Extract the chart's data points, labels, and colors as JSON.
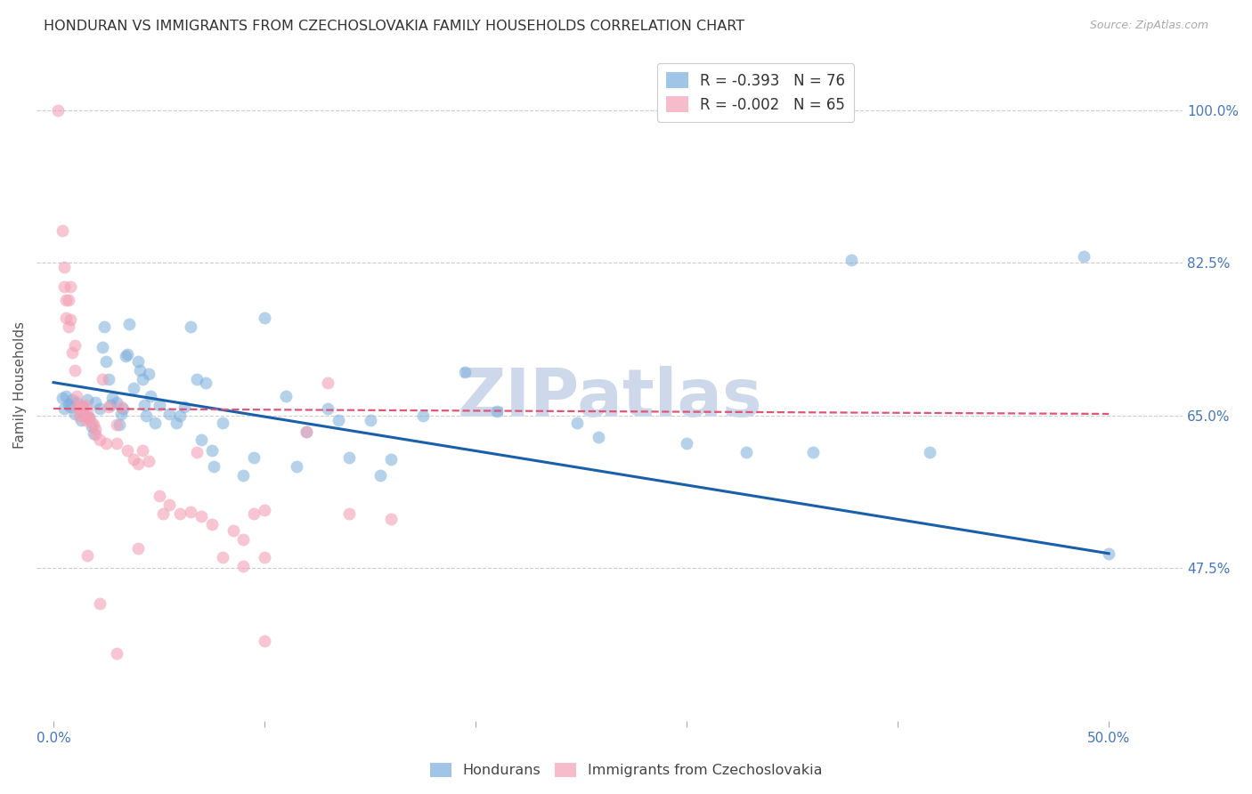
{
  "title": "HONDURAN VS IMMIGRANTS FROM CZECHOSLOVAKIA FAMILY HOUSEHOLDS CORRELATION CHART",
  "source": "Source: ZipAtlas.com",
  "ylabel": "Family Households",
  "watermark": "ZIPatlas",
  "x_ticks": [
    0.0,
    0.1,
    0.2,
    0.3,
    0.4,
    0.5
  ],
  "x_tick_labels": [
    "0.0%",
    "",
    "",
    "",
    "",
    "50.0%"
  ],
  "y_tick_labels": [
    "100.0%",
    "82.5%",
    "65.0%",
    "47.5%"
  ],
  "y_ticks": [
    1.0,
    0.825,
    0.65,
    0.475
  ],
  "xlim": [
    -0.008,
    0.535
  ],
  "ylim": [
    0.3,
    1.07
  ],
  "legend_series1": "R = -0.393   N = 76",
  "legend_series2": "R = -0.002   N = 65",
  "blue_color": "#7aaddc",
  "pink_color": "#f4a0b5",
  "blue_line_color": "#1a5faa",
  "pink_line_color": "#e05575",
  "blue_scatter": [
    [
      0.004,
      0.67
    ],
    [
      0.005,
      0.658
    ],
    [
      0.006,
      0.672
    ],
    [
      0.007,
      0.663
    ],
    [
      0.008,
      0.66
    ],
    [
      0.009,
      0.668
    ],
    [
      0.01,
      0.652
    ],
    [
      0.011,
      0.665
    ],
    [
      0.012,
      0.658
    ],
    [
      0.013,
      0.645
    ],
    [
      0.014,
      0.66
    ],
    [
      0.015,
      0.65
    ],
    [
      0.016,
      0.668
    ],
    [
      0.017,
      0.648
    ],
    [
      0.018,
      0.638
    ],
    [
      0.019,
      0.63
    ],
    [
      0.02,
      0.665
    ],
    [
      0.022,
      0.658
    ],
    [
      0.023,
      0.728
    ],
    [
      0.024,
      0.752
    ],
    [
      0.025,
      0.712
    ],
    [
      0.026,
      0.692
    ],
    [
      0.027,
      0.662
    ],
    [
      0.028,
      0.67
    ],
    [
      0.03,
      0.665
    ],
    [
      0.031,
      0.64
    ],
    [
      0.032,
      0.652
    ],
    [
      0.033,
      0.658
    ],
    [
      0.034,
      0.718
    ],
    [
      0.035,
      0.72
    ],
    [
      0.036,
      0.755
    ],
    [
      0.038,
      0.682
    ],
    [
      0.04,
      0.712
    ],
    [
      0.041,
      0.702
    ],
    [
      0.042,
      0.692
    ],
    [
      0.043,
      0.662
    ],
    [
      0.044,
      0.65
    ],
    [
      0.045,
      0.698
    ],
    [
      0.046,
      0.672
    ],
    [
      0.048,
      0.642
    ],
    [
      0.05,
      0.662
    ],
    [
      0.055,
      0.652
    ],
    [
      0.058,
      0.642
    ],
    [
      0.06,
      0.65
    ],
    [
      0.062,
      0.66
    ],
    [
      0.065,
      0.752
    ],
    [
      0.068,
      0.692
    ],
    [
      0.07,
      0.622
    ],
    [
      0.072,
      0.688
    ],
    [
      0.075,
      0.61
    ],
    [
      0.076,
      0.592
    ],
    [
      0.08,
      0.642
    ],
    [
      0.09,
      0.582
    ],
    [
      0.095,
      0.602
    ],
    [
      0.1,
      0.762
    ],
    [
      0.11,
      0.672
    ],
    [
      0.115,
      0.592
    ],
    [
      0.12,
      0.632
    ],
    [
      0.13,
      0.658
    ],
    [
      0.135,
      0.645
    ],
    [
      0.14,
      0.602
    ],
    [
      0.15,
      0.645
    ],
    [
      0.155,
      0.582
    ],
    [
      0.16,
      0.6
    ],
    [
      0.175,
      0.65
    ],
    [
      0.195,
      0.7
    ],
    [
      0.21,
      0.655
    ],
    [
      0.248,
      0.642
    ],
    [
      0.258,
      0.625
    ],
    [
      0.3,
      0.618
    ],
    [
      0.328,
      0.608
    ],
    [
      0.36,
      0.608
    ],
    [
      0.415,
      0.608
    ],
    [
      0.5,
      0.492
    ],
    [
      0.488,
      0.832
    ],
    [
      0.378,
      0.828
    ]
  ],
  "pink_scatter": [
    [
      0.002,
      1.0
    ],
    [
      0.004,
      0.862
    ],
    [
      0.005,
      0.82
    ],
    [
      0.005,
      0.798
    ],
    [
      0.006,
      0.782
    ],
    [
      0.006,
      0.762
    ],
    [
      0.007,
      0.782
    ],
    [
      0.007,
      0.752
    ],
    [
      0.008,
      0.798
    ],
    [
      0.008,
      0.76
    ],
    [
      0.009,
      0.722
    ],
    [
      0.01,
      0.73
    ],
    [
      0.01,
      0.702
    ],
    [
      0.011,
      0.672
    ],
    [
      0.011,
      0.66
    ],
    [
      0.012,
      0.66
    ],
    [
      0.012,
      0.65
    ],
    [
      0.013,
      0.66
    ],
    [
      0.013,
      0.652
    ],
    [
      0.014,
      0.658
    ],
    [
      0.015,
      0.662
    ],
    [
      0.015,
      0.645
    ],
    [
      0.016,
      0.655
    ],
    [
      0.016,
      0.648
    ],
    [
      0.017,
      0.648
    ],
    [
      0.018,
      0.642
    ],
    [
      0.019,
      0.64
    ],
    [
      0.02,
      0.635
    ],
    [
      0.02,
      0.628
    ],
    [
      0.022,
      0.622
    ],
    [
      0.023,
      0.692
    ],
    [
      0.025,
      0.618
    ],
    [
      0.026,
      0.66
    ],
    [
      0.03,
      0.64
    ],
    [
      0.03,
      0.618
    ],
    [
      0.032,
      0.66
    ],
    [
      0.035,
      0.61
    ],
    [
      0.038,
      0.6
    ],
    [
      0.04,
      0.595
    ],
    [
      0.042,
      0.61
    ],
    [
      0.045,
      0.598
    ],
    [
      0.05,
      0.558
    ],
    [
      0.052,
      0.538
    ],
    [
      0.055,
      0.548
    ],
    [
      0.06,
      0.538
    ],
    [
      0.065,
      0.54
    ],
    [
      0.068,
      0.608
    ],
    [
      0.07,
      0.535
    ],
    [
      0.075,
      0.525
    ],
    [
      0.08,
      0.488
    ],
    [
      0.085,
      0.518
    ],
    [
      0.09,
      0.508
    ],
    [
      0.095,
      0.538
    ],
    [
      0.1,
      0.542
    ],
    [
      0.12,
      0.632
    ],
    [
      0.13,
      0.688
    ],
    [
      0.14,
      0.538
    ],
    [
      0.16,
      0.532
    ],
    [
      0.09,
      0.478
    ],
    [
      0.1,
      0.488
    ],
    [
      0.03,
      0.378
    ],
    [
      0.04,
      0.498
    ],
    [
      0.016,
      0.49
    ],
    [
      0.022,
      0.435
    ],
    [
      0.1,
      0.392
    ]
  ],
  "blue_line_x": [
    0.0,
    0.5
  ],
  "blue_line_y": [
    0.688,
    0.492
  ],
  "pink_line_x": [
    0.0,
    0.5
  ],
  "pink_line_y": [
    0.658,
    0.652
  ],
  "background_color": "#ffffff",
  "grid_color": "#cccccc",
  "title_color": "#333333",
  "axis_color": "#4477bb",
  "watermark_color": "#cdd8ea"
}
